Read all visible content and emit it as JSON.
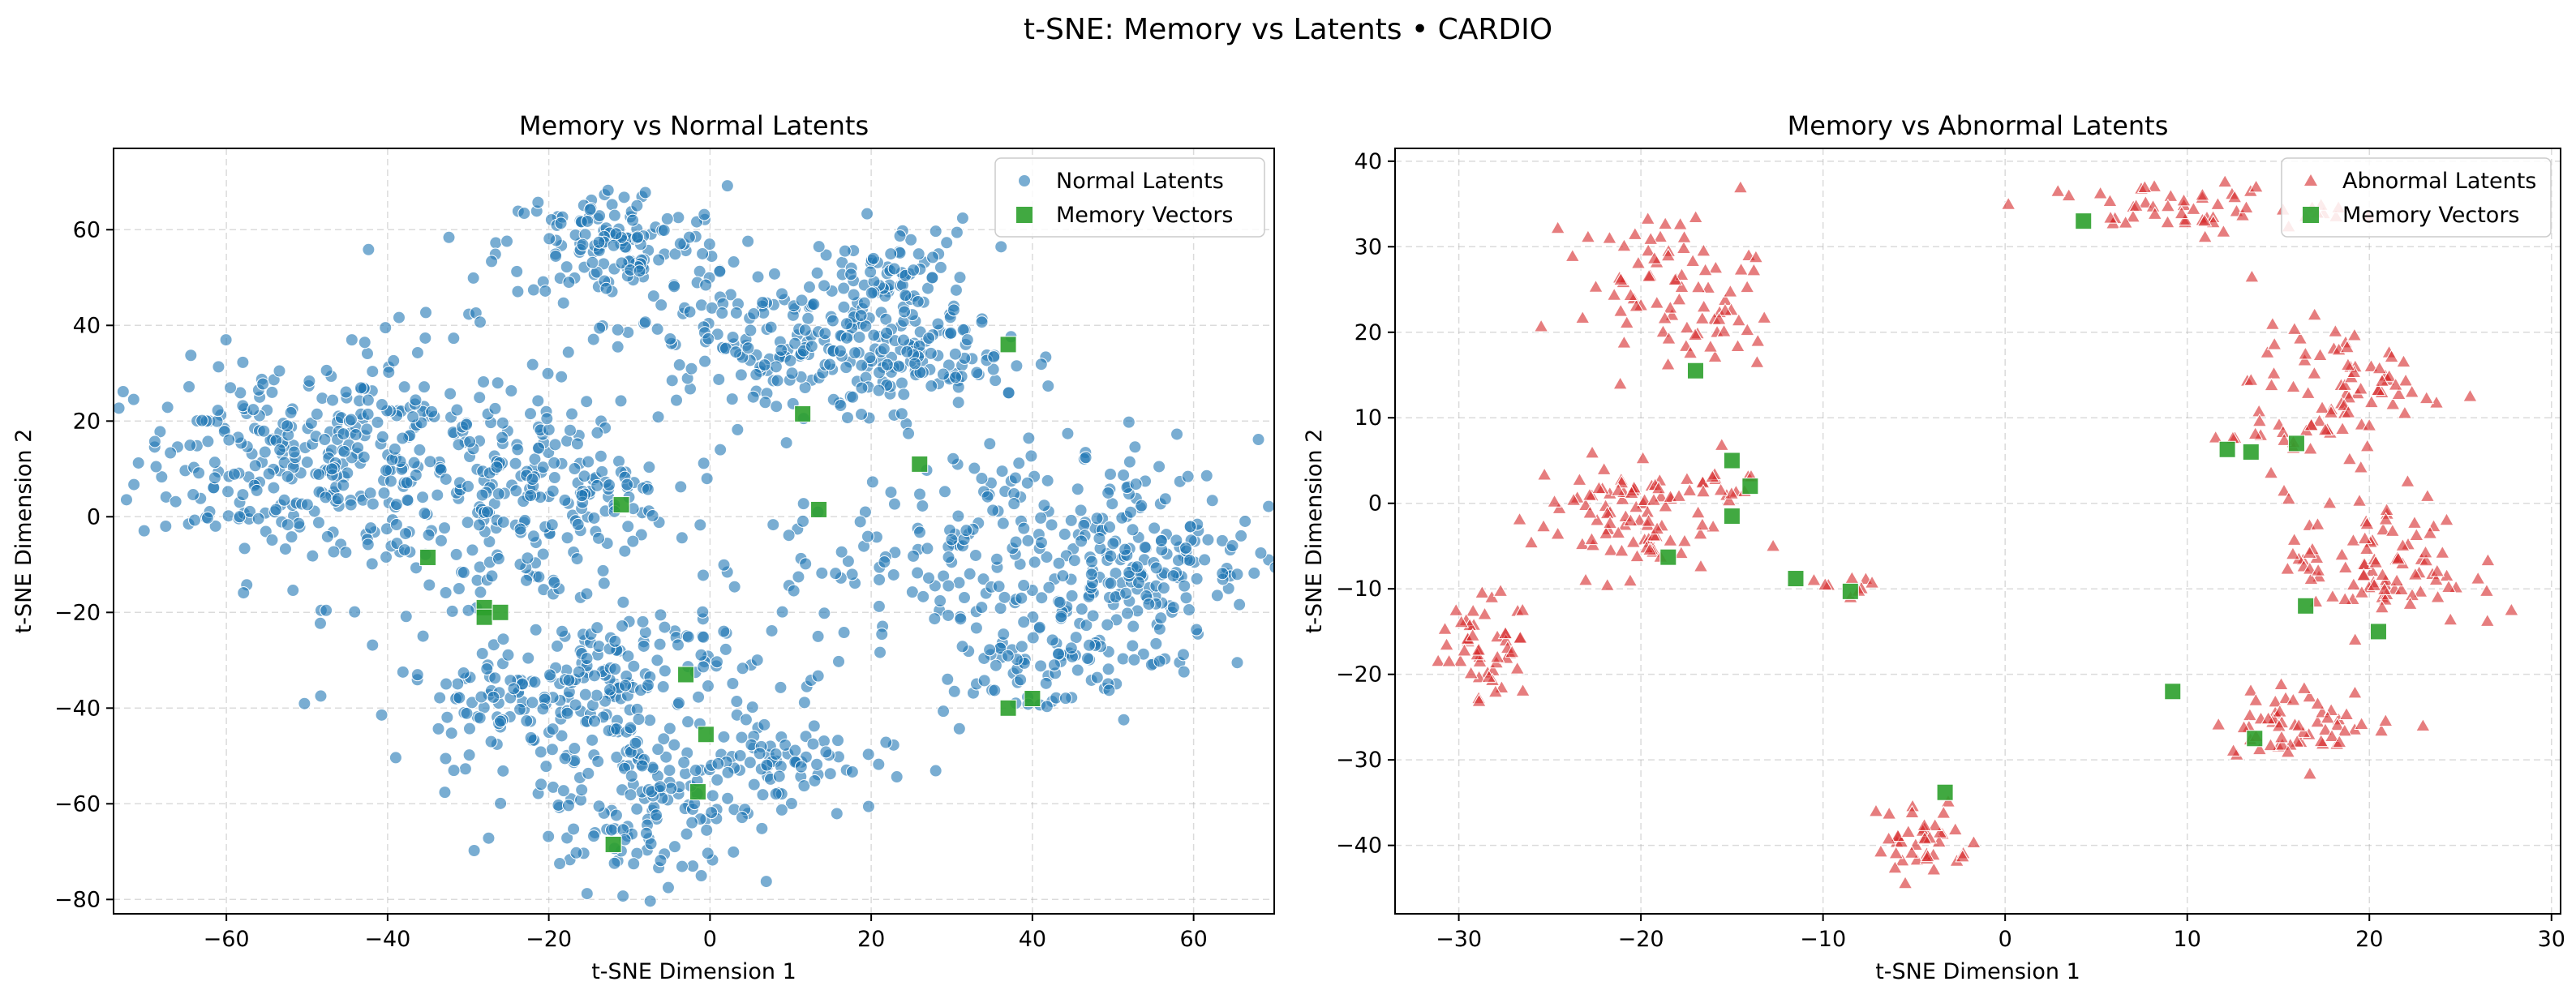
{
  "figure": {
    "title": "t-SNE: Memory vs Latents • CARDIO"
  },
  "colors": {
    "normal": "#1f77b4",
    "abnormal": "#d62728",
    "memory": "#2ca02c"
  },
  "chart_data": [
    {
      "type": "scatter",
      "title": "Memory vs Normal Latents",
      "xlabel": "t-SNE Dimension 1",
      "ylabel": "t-SNE Dimension 2",
      "xlim": [
        -74,
        70
      ],
      "ylim": [
        -83,
        77
      ],
      "xticks": [
        -60,
        -40,
        -20,
        0,
        20,
        40,
        60
      ],
      "yticks": [
        -80,
        -60,
        -40,
        -20,
        0,
        20,
        40,
        60
      ],
      "grid": true,
      "legend_position": "top-right",
      "legend": [
        "Normal Latents",
        "Memory Vectors"
      ],
      "clusters": [
        {
          "series": "Normal Latents",
          "center": [
            -55,
            12
          ],
          "spread": [
            8,
            10
          ],
          "n": 170
        },
        {
          "series": "Normal Latents",
          "center": [
            -38,
            10
          ],
          "spread": [
            10,
            14
          ],
          "n": 230
        },
        {
          "series": "Normal Latents",
          "center": [
            -22,
            3
          ],
          "spread": [
            6,
            11
          ],
          "n": 120
        },
        {
          "series": "Normal Latents",
          "center": [
            -13,
            4
          ],
          "spread": [
            4,
            5
          ],
          "n": 50
        },
        {
          "series": "Normal Latents",
          "center": [
            -12,
            57
          ],
          "spread": [
            7,
            6
          ],
          "n": 140
        },
        {
          "series": "Normal Latents",
          "center": [
            8,
            36
          ],
          "spread": [
            10,
            8
          ],
          "n": 190
        },
        {
          "series": "Normal Latents",
          "center": [
            23,
            48
          ],
          "spread": [
            5,
            7
          ],
          "n": 90
        },
        {
          "series": "Normal Latents",
          "center": [
            28,
            32
          ],
          "spread": [
            8,
            4
          ],
          "n": 80
        },
        {
          "series": "Normal Latents",
          "center": [
            -24,
            -40
          ],
          "spread": [
            7,
            6
          ],
          "n": 90
        },
        {
          "series": "Normal Latents",
          "center": [
            -10,
            -33
          ],
          "spread": [
            8,
            8
          ],
          "n": 130
        },
        {
          "series": "Normal Latents",
          "center": [
            -8,
            -58
          ],
          "spread": [
            8,
            10
          ],
          "n": 170
        },
        {
          "series": "Normal Latents",
          "center": [
            8,
            -52
          ],
          "spread": [
            7,
            4
          ],
          "n": 60
        },
        {
          "series": "Normal Latents",
          "center": [
            38,
            -8
          ],
          "spread": [
            15,
            12
          ],
          "n": 260
        },
        {
          "series": "Normal Latents",
          "center": [
            55,
            -10
          ],
          "spread": [
            6,
            12
          ],
          "n": 110
        },
        {
          "series": "Normal Latents",
          "center": [
            40,
            -30
          ],
          "spread": [
            6,
            6
          ],
          "n": 70
        }
      ],
      "memory_vectors": [
        [
          37,
          36
        ],
        [
          11.5,
          21.5
        ],
        [
          -11,
          2.5
        ],
        [
          13.5,
          1.5
        ],
        [
          26,
          11
        ],
        [
          -35,
          -8.5
        ],
        [
          -28,
          -19
        ],
        [
          -28,
          -21
        ],
        [
          -26,
          -20
        ],
        [
          -3,
          -33
        ],
        [
          37,
          -40
        ],
        [
          40,
          -38
        ],
        [
          -0.5,
          -45.5
        ],
        [
          -1.5,
          -57.5
        ],
        [
          -12,
          -68.5
        ]
      ]
    },
    {
      "type": "scatter",
      "title": "Memory vs Abnormal Latents",
      "xlabel": "t-SNE Dimension 1",
      "ylabel": "t-SNE Dimension 2",
      "xlim": [
        -33.5,
        30.5
      ],
      "ylim": [
        -48,
        41.5
      ],
      "xticks": [
        -30,
        -20,
        -10,
        0,
        10,
        20,
        30
      ],
      "yticks": [
        -40,
        -30,
        -20,
        -10,
        0,
        10,
        20,
        30,
        40
      ],
      "grid": true,
      "legend_position": "top-right",
      "legend": [
        "Abnormal Latents",
        "Memory Vectors"
      ],
      "clusters": [
        {
          "series": "Abnormal Latents",
          "center": [
            -18.5,
            26
          ],
          "spread": [
            2.5,
            4
          ],
          "n": 70
        },
        {
          "series": "Abnormal Latents",
          "center": [
            -15.5,
            19.5
          ],
          "spread": [
            1.5,
            2
          ],
          "n": 15
        },
        {
          "series": "Abnormal Latents",
          "center": [
            10,
            34.5
          ],
          "spread": [
            4,
            1.5
          ],
          "n": 55
        },
        {
          "series": "Abnormal Latents",
          "center": [
            18.5,
            14
          ],
          "spread": [
            2.5,
            3.5
          ],
          "n": 70
        },
        {
          "series": "Abnormal Latents",
          "center": [
            15,
            8
          ],
          "spread": [
            2,
            1.5
          ],
          "n": 20
        },
        {
          "series": "Abnormal Latents",
          "center": [
            -21,
            -1.5
          ],
          "spread": [
            2.5,
            3.5
          ],
          "n": 90
        },
        {
          "series": "Abnormal Latents",
          "center": [
            -16,
            2.5
          ],
          "spread": [
            1.2,
            1.2
          ],
          "n": 15
        },
        {
          "series": "Abnormal Latents",
          "center": [
            20.5,
            -7
          ],
          "spread": [
            2.5,
            4
          ],
          "n": 95
        },
        {
          "series": "Abnormal Latents",
          "center": [
            -28.5,
            -17
          ],
          "spread": [
            1.2,
            3
          ],
          "n": 50
        },
        {
          "series": "Abnormal Latents",
          "center": [
            16.5,
            -25.5
          ],
          "spread": [
            2.5,
            2
          ],
          "n": 60
        },
        {
          "series": "Abnormal Latents",
          "center": [
            -4.5,
            -39.5
          ],
          "spread": [
            1.3,
            2.5
          ],
          "n": 40
        },
        {
          "series": "Abnormal Latents",
          "center": [
            -9,
            -9.5
          ],
          "spread": [
            0.8,
            0.5
          ],
          "n": 8
        }
      ],
      "extra_points": [
        [
          27.8,
          -12.5
        ],
        [
          -10.5,
          -9
        ],
        [
          -26.5,
          -12.5
        ]
      ],
      "memory_vectors": [
        [
          4.3,
          33
        ],
        [
          -17,
          15.5
        ],
        [
          -15,
          5
        ],
        [
          -14,
          2
        ],
        [
          -15,
          -1.5
        ],
        [
          -18.5,
          -6.3
        ],
        [
          -11.5,
          -8.8
        ],
        [
          -8.5,
          -10.3
        ],
        [
          12.2,
          6.3
        ],
        [
          13.5,
          6
        ],
        [
          16,
          7
        ],
        [
          16.5,
          -12
        ],
        [
          20.5,
          -15
        ],
        [
          9.2,
          -22
        ],
        [
          13.7,
          -27.5
        ],
        [
          -3.3,
          -33.8
        ]
      ]
    }
  ]
}
